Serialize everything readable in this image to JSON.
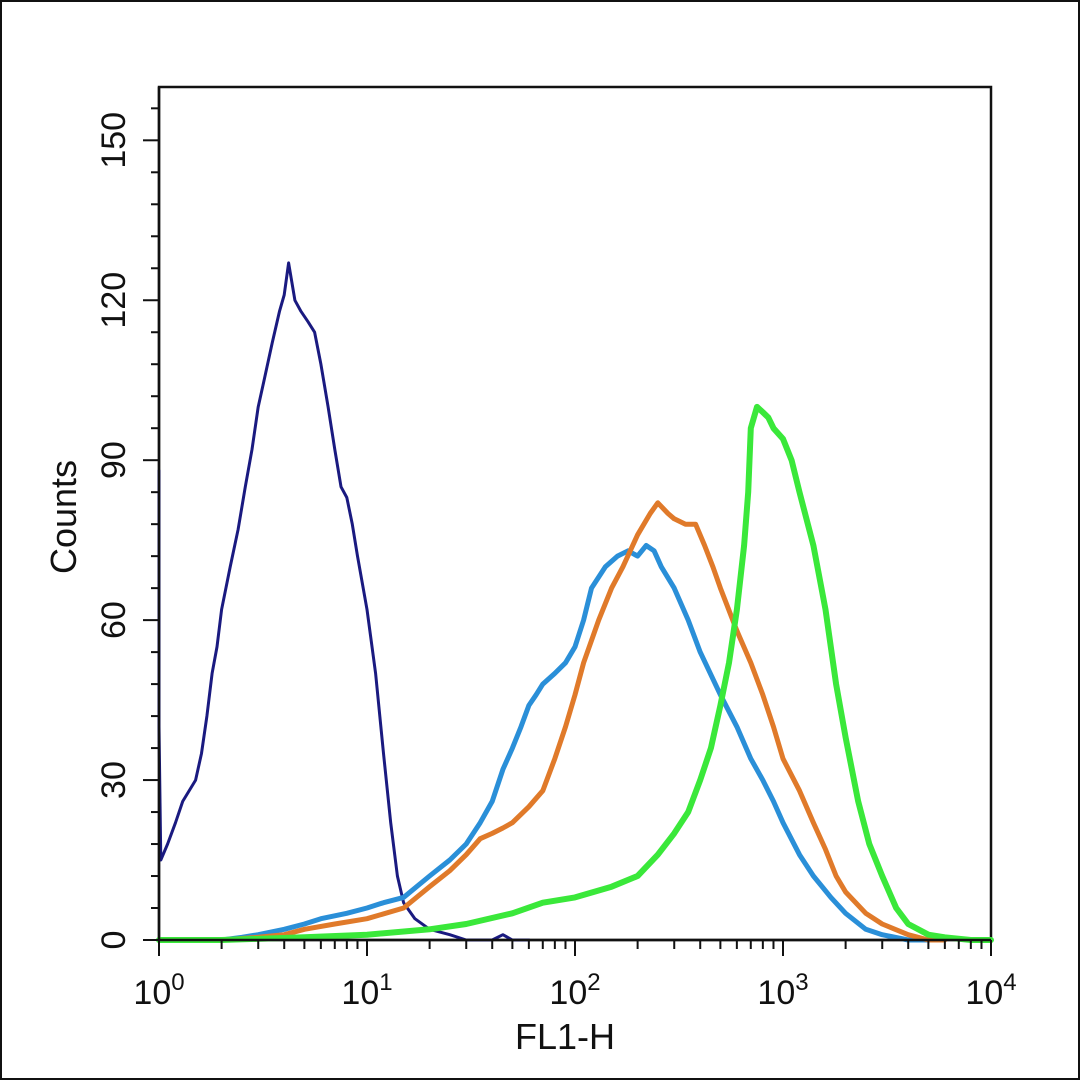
{
  "chart_data": {
    "type": "line",
    "title": "",
    "xlabel": "FL1-H",
    "ylabel": "Counts",
    "x_scale": "log",
    "xlim": [
      1,
      10000
    ],
    "ylim": [
      0,
      160
    ],
    "x_ticks": [
      {
        "value": 1,
        "base": "10",
        "exp": "0"
      },
      {
        "value": 10,
        "base": "10",
        "exp": "1"
      },
      {
        "value": 100,
        "base": "10",
        "exp": "2"
      },
      {
        "value": 1000,
        "base": "10",
        "exp": "3"
      },
      {
        "value": 10000,
        "base": "10",
        "exp": "4"
      }
    ],
    "y_ticks": [
      0,
      30,
      60,
      90,
      120,
      150
    ],
    "grid": false,
    "legend": "none",
    "series": [
      {
        "color": "#1a1a80",
        "points": [
          [
            1.0,
            88
          ],
          [
            1.0,
            40
          ],
          [
            1.02,
            15
          ],
          [
            1.1,
            18
          ],
          [
            1.2,
            22
          ],
          [
            1.3,
            26
          ],
          [
            1.5,
            30
          ],
          [
            1.6,
            35
          ],
          [
            1.7,
            42
          ],
          [
            1.8,
            50
          ],
          [
            1.9,
            55
          ],
          [
            2.0,
            62
          ],
          [
            2.2,
            70
          ],
          [
            2.4,
            77
          ],
          [
            2.6,
            85
          ],
          [
            2.8,
            92
          ],
          [
            3.0,
            100
          ],
          [
            3.2,
            105
          ],
          [
            3.5,
            112
          ],
          [
            3.8,
            118
          ],
          [
            4.0,
            121
          ],
          [
            4.2,
            127
          ],
          [
            4.5,
            120
          ],
          [
            4.8,
            118
          ],
          [
            5.2,
            116
          ],
          [
            5.6,
            114
          ],
          [
            6.0,
            108
          ],
          [
            6.5,
            100
          ],
          [
            7.0,
            92
          ],
          [
            7.5,
            85
          ],
          [
            8.0,
            83
          ],
          [
            8.5,
            78
          ],
          [
            9.0,
            72
          ],
          [
            10,
            62
          ],
          [
            11,
            50
          ],
          [
            12,
            35
          ],
          [
            13,
            22
          ],
          [
            14,
            12
          ],
          [
            15,
            7
          ],
          [
            17,
            4
          ],
          [
            20,
            2
          ],
          [
            25,
            1
          ],
          [
            30,
            0
          ],
          [
            40,
            0
          ],
          [
            45,
            1
          ],
          [
            50,
            0
          ],
          [
            60,
            0
          ]
        ]
      },
      {
        "color": "#2a8fd8",
        "points": [
          [
            1.2,
            0
          ],
          [
            1.5,
            0
          ],
          [
            2.0,
            0
          ],
          [
            2.5,
            0.5
          ],
          [
            3.0,
            1
          ],
          [
            4.0,
            2
          ],
          [
            5.0,
            3
          ],
          [
            6.0,
            4
          ],
          [
            8.0,
            5
          ],
          [
            10,
            6
          ],
          [
            12,
            7
          ],
          [
            15,
            8
          ],
          [
            20,
            12
          ],
          [
            25,
            15
          ],
          [
            30,
            18
          ],
          [
            35,
            22
          ],
          [
            40,
            26
          ],
          [
            45,
            32
          ],
          [
            50,
            36
          ],
          [
            55,
            40
          ],
          [
            60,
            44
          ],
          [
            65,
            46
          ],
          [
            70,
            48
          ],
          [
            80,
            50
          ],
          [
            90,
            52
          ],
          [
            100,
            55
          ],
          [
            110,
            60
          ],
          [
            120,
            66
          ],
          [
            140,
            70
          ],
          [
            160,
            72
          ],
          [
            180,
            73
          ],
          [
            200,
            72
          ],
          [
            220,
            74
          ],
          [
            240,
            73
          ],
          [
            260,
            70
          ],
          [
            300,
            66
          ],
          [
            350,
            60
          ],
          [
            400,
            54
          ],
          [
            500,
            46
          ],
          [
            600,
            40
          ],
          [
            700,
            34
          ],
          [
            800,
            30
          ],
          [
            900,
            26
          ],
          [
            1000,
            22
          ],
          [
            1200,
            16
          ],
          [
            1400,
            12
          ],
          [
            1700,
            8
          ],
          [
            2000,
            5
          ],
          [
            2500,
            2
          ],
          [
            3000,
            1
          ],
          [
            4000,
            0
          ],
          [
            5000,
            0
          ]
        ]
      },
      {
        "color": "#e07a2a",
        "points": [
          [
            2.0,
            0
          ],
          [
            3.0,
            0.5
          ],
          [
            4.0,
            1
          ],
          [
            5.0,
            2
          ],
          [
            7.0,
            3
          ],
          [
            10,
            4
          ],
          [
            15,
            6
          ],
          [
            20,
            10
          ],
          [
            25,
            13
          ],
          [
            30,
            16
          ],
          [
            35,
            19
          ],
          [
            40,
            20
          ],
          [
            45,
            21
          ],
          [
            50,
            22
          ],
          [
            60,
            25
          ],
          [
            70,
            28
          ],
          [
            80,
            34
          ],
          [
            90,
            40
          ],
          [
            100,
            46
          ],
          [
            110,
            52
          ],
          [
            130,
            60
          ],
          [
            150,
            66
          ],
          [
            170,
            70
          ],
          [
            200,
            76
          ],
          [
            230,
            80
          ],
          [
            250,
            82
          ],
          [
            280,
            80
          ],
          [
            300,
            79
          ],
          [
            340,
            78
          ],
          [
            380,
            78
          ],
          [
            420,
            74
          ],
          [
            460,
            70
          ],
          [
            500,
            66
          ],
          [
            600,
            58
          ],
          [
            700,
            52
          ],
          [
            800,
            46
          ],
          [
            900,
            40
          ],
          [
            1000,
            34
          ],
          [
            1200,
            28
          ],
          [
            1400,
            22
          ],
          [
            1600,
            17
          ],
          [
            1800,
            12
          ],
          [
            2000,
            9
          ],
          [
            2500,
            5
          ],
          [
            3000,
            3
          ],
          [
            4000,
            1
          ],
          [
            5000,
            0
          ],
          [
            6000,
            0
          ]
        ]
      },
      {
        "color": "#3ae83a",
        "points": [
          [
            1.0,
            0
          ],
          [
            2.0,
            0
          ],
          [
            5.0,
            0.5
          ],
          [
            10,
            1
          ],
          [
            20,
            2
          ],
          [
            30,
            3
          ],
          [
            50,
            5
          ],
          [
            70,
            7
          ],
          [
            100,
            8
          ],
          [
            150,
            10
          ],
          [
            200,
            12
          ],
          [
            250,
            16
          ],
          [
            300,
            20
          ],
          [
            350,
            24
          ],
          [
            400,
            30
          ],
          [
            450,
            36
          ],
          [
            500,
            44
          ],
          [
            550,
            52
          ],
          [
            600,
            62
          ],
          [
            650,
            74
          ],
          [
            680,
            84
          ],
          [
            700,
            96
          ],
          [
            750,
            100
          ],
          [
            800,
            99
          ],
          [
            850,
            98
          ],
          [
            900,
            96
          ],
          [
            1000,
            94
          ],
          [
            1100,
            90
          ],
          [
            1200,
            84
          ],
          [
            1400,
            74
          ],
          [
            1600,
            62
          ],
          [
            1800,
            48
          ],
          [
            2000,
            38
          ],
          [
            2300,
            26
          ],
          [
            2600,
            18
          ],
          [
            3000,
            12
          ],
          [
            3500,
            6
          ],
          [
            4000,
            3
          ],
          [
            5000,
            1
          ],
          [
            6000,
            0.5
          ],
          [
            8000,
            0
          ],
          [
            10000,
            0
          ]
        ]
      }
    ]
  }
}
